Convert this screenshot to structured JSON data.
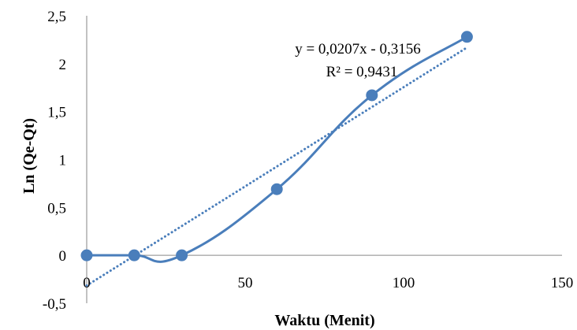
{
  "chart_data": {
    "type": "scatter",
    "title": "",
    "xlabel": "Waktu (Menit)",
    "ylabel": "Ln (Qe-Qt)",
    "xlim": [
      0,
      150
    ],
    "ylim": [
      -0.5,
      2.5
    ],
    "xticks": [
      0,
      50,
      100,
      150
    ],
    "xtick_labels": [
      "0",
      "50",
      "100",
      "150"
    ],
    "yticks": [
      -0.5,
      0,
      0.5,
      1,
      1.5,
      2,
      2.5
    ],
    "ytick_labels": [
      "-0,5",
      "0",
      "0,5",
      "1",
      "1,5",
      "2",
      "2,5"
    ],
    "grid": false,
    "series": [
      {
        "x": [
          0,
          15,
          30,
          60,
          90,
          120
        ],
        "y": [
          0,
          0,
          0,
          0.69,
          1.67,
          2.28
        ],
        "color": "#4a7ebb",
        "line": "smooth",
        "marker": "circle"
      }
    ],
    "trendline": {
      "kind": "linear",
      "slope": 0.0207,
      "intercept": -0.3156,
      "x_range": [
        0,
        120
      ],
      "style": "dotted",
      "color": "#4a7ebb"
    },
    "annotations": [
      "y = 0,0207x - 0,3156",
      "R² = 0,9431"
    ]
  }
}
